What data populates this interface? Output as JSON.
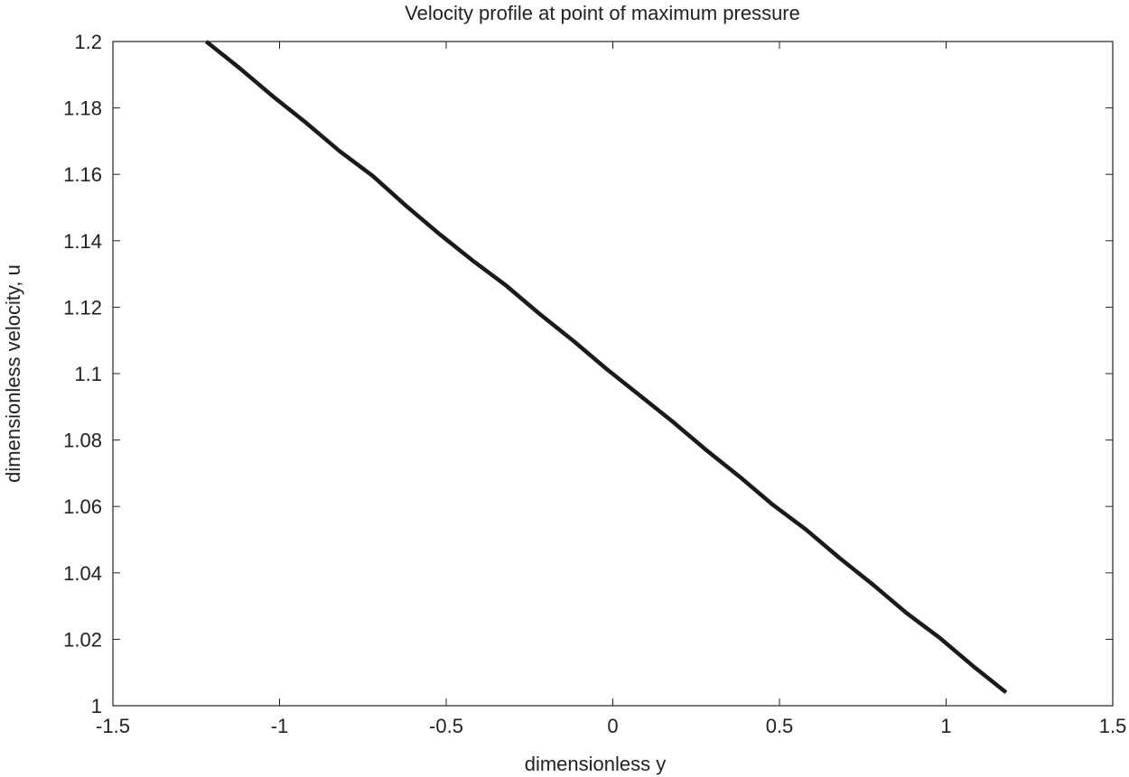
{
  "chart_data": {
    "type": "line",
    "title": "Velocity profile at point of maximum pressure",
    "xlabel": "dimensionless y",
    "ylabel": "dimensionless velocity, u",
    "xlim": [
      -1.5,
      1.5
    ],
    "ylim": [
      1.0,
      1.2
    ],
    "grid": false,
    "x_ticks": [
      -1.5,
      -1,
      -0.5,
      0,
      0.5,
      1,
      1.5
    ],
    "x_tick_labels": [
      "-1.5",
      "-1",
      "-0.5",
      "0",
      "0.5",
      "1",
      "1.5"
    ],
    "y_ticks": [
      1.0,
      1.02,
      1.04,
      1.06,
      1.08,
      1.1,
      1.12,
      1.14,
      1.16,
      1.18,
      1.2
    ],
    "y_tick_labels": [
      "1",
      "1.02",
      "1.04",
      "1.06",
      "1.08",
      "1.1",
      "1.12",
      "1.14",
      "1.16",
      "1.18",
      "1.2"
    ],
    "series": [
      {
        "name": "u",
        "color": "#1a1a1a",
        "x": [
          -1.22,
          -1.12,
          -1.02,
          -0.92,
          -0.82,
          -0.72,
          -0.62,
          -0.52,
          -0.42,
          -0.32,
          -0.22,
          -0.12,
          -0.02,
          0.08,
          0.18,
          0.28,
          0.38,
          0.48,
          0.58,
          0.68,
          0.78,
          0.88,
          0.98,
          1.08,
          1.18
        ],
        "y": [
          1.2,
          1.192,
          1.1835,
          1.1755,
          1.167,
          1.1595,
          1.1505,
          1.142,
          1.134,
          1.1265,
          1.118,
          1.11,
          1.1015,
          1.0935,
          1.0855,
          1.077,
          1.069,
          1.0605,
          1.053,
          1.0445,
          1.0365,
          1.028,
          1.0205,
          1.012,
          1.004
        ]
      }
    ]
  }
}
